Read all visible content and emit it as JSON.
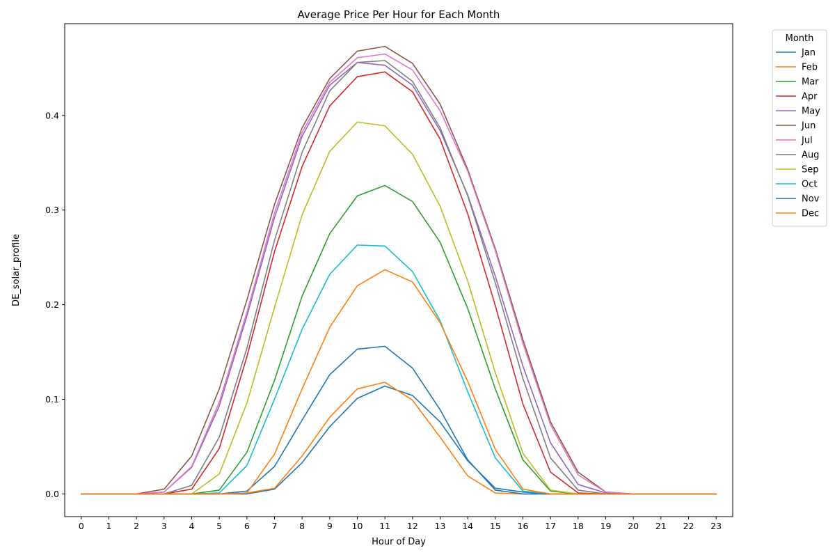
{
  "chart_data": {
    "type": "line",
    "title": "Average Price Per Hour for Each Month",
    "xlabel": "Hour of Day",
    "ylabel": "DE_solar_profile",
    "x": [
      0,
      1,
      2,
      3,
      4,
      5,
      6,
      7,
      8,
      9,
      10,
      11,
      12,
      13,
      14,
      15,
      16,
      17,
      18,
      19,
      20,
      21,
      22,
      23
    ],
    "x_tick_labels": [
      "0",
      "1",
      "2",
      "3",
      "4",
      "5",
      "6",
      "7",
      "8",
      "9",
      "10",
      "11",
      "12",
      "13",
      "14",
      "15",
      "16",
      "17",
      "18",
      "19",
      "20",
      "21",
      "22",
      "23"
    ],
    "xlim": [
      -0.6,
      23.6
    ],
    "ylim": [
      -0.024,
      0.497
    ],
    "y_ticks": [
      0.0,
      0.1,
      0.2,
      0.3,
      0.4
    ],
    "y_tick_labels": [
      "0.0",
      "0.1",
      "0.2",
      "0.3",
      "0.4"
    ],
    "grid": false,
    "legend": {
      "title": "Month",
      "placement": "outside-top-right"
    },
    "series": [
      {
        "name": "Jan",
        "color": "#1f77b4",
        "values": [
          0,
          0,
          0,
          0,
          0,
          0,
          0,
          0.005,
          0.033,
          0.071,
          0.101,
          0.114,
          0.104,
          0.076,
          0.035,
          0.006,
          0.002,
          0,
          0,
          0,
          0,
          0,
          0,
          0
        ]
      },
      {
        "name": "Feb",
        "color": "#ff7f0e",
        "values": [
          0,
          0,
          0,
          0,
          0,
          0,
          0.001,
          0.006,
          0.04,
          0.081,
          0.111,
          0.118,
          0.099,
          0.06,
          0.019,
          0.001,
          0,
          0,
          0,
          0,
          0,
          0,
          0,
          0
        ]
      },
      {
        "name": "Mar",
        "color": "#2ca02c",
        "values": [
          0,
          0,
          0,
          0,
          0,
          0.004,
          0.044,
          0.12,
          0.209,
          0.275,
          0.315,
          0.326,
          0.309,
          0.266,
          0.196,
          0.111,
          0.036,
          0.003,
          0,
          0,
          0,
          0,
          0,
          0
        ]
      },
      {
        "name": "Apr",
        "color": "#d62728",
        "values": [
          0,
          0,
          0,
          0,
          0.005,
          0.048,
          0.145,
          0.256,
          0.346,
          0.41,
          0.441,
          0.446,
          0.425,
          0.375,
          0.296,
          0.199,
          0.095,
          0.023,
          0.001,
          0,
          0,
          0,
          0,
          0
        ]
      },
      {
        "name": "May",
        "color": "#9467bd",
        "values": [
          0,
          0,
          0,
          0.002,
          0.028,
          0.093,
          0.188,
          0.292,
          0.378,
          0.432,
          0.456,
          0.453,
          0.432,
          0.384,
          0.316,
          0.23,
          0.135,
          0.054,
          0.01,
          0.001,
          0,
          0,
          0,
          0
        ]
      },
      {
        "name": "Jun",
        "color": "#8c564b",
        "values": [
          0,
          0,
          0,
          0.005,
          0.04,
          0.111,
          0.205,
          0.306,
          0.387,
          0.439,
          0.468,
          0.473,
          0.455,
          0.412,
          0.343,
          0.259,
          0.163,
          0.076,
          0.023,
          0.002,
          0,
          0,
          0,
          0
        ]
      },
      {
        "name": "Jul",
        "color": "#e377c2",
        "values": [
          0,
          0,
          0,
          0.002,
          0.029,
          0.097,
          0.192,
          0.297,
          0.382,
          0.435,
          0.461,
          0.465,
          0.448,
          0.405,
          0.341,
          0.257,
          0.159,
          0.073,
          0.02,
          0.002,
          0,
          0,
          0,
          0
        ]
      },
      {
        "name": "Aug",
        "color": "#7f7f7f",
        "values": [
          0,
          0,
          0,
          0,
          0.009,
          0.06,
          0.154,
          0.268,
          0.361,
          0.426,
          0.456,
          0.458,
          0.436,
          0.387,
          0.315,
          0.223,
          0.122,
          0.038,
          0.004,
          0,
          0,
          0,
          0,
          0
        ]
      },
      {
        "name": "Sep",
        "color": "#bcbd22",
        "values": [
          0,
          0,
          0,
          0,
          0,
          0.021,
          0.096,
          0.197,
          0.295,
          0.362,
          0.393,
          0.389,
          0.359,
          0.304,
          0.225,
          0.128,
          0.043,
          0.004,
          0,
          0,
          0,
          0,
          0,
          0
        ]
      },
      {
        "name": "Oct",
        "color": "#17becf",
        "values": [
          0,
          0,
          0,
          0,
          0,
          0.001,
          0.03,
          0.1,
          0.174,
          0.232,
          0.263,
          0.262,
          0.235,
          0.183,
          0.108,
          0.038,
          0.003,
          0,
          0,
          0,
          0,
          0,
          0,
          0
        ]
      },
      {
        "name": "Nov",
        "color": "#1f77b4",
        "values": [
          0,
          0,
          0,
          0,
          0,
          0,
          0.003,
          0.029,
          0.078,
          0.126,
          0.153,
          0.156,
          0.133,
          0.089,
          0.036,
          0.004,
          0,
          0,
          0,
          0,
          0,
          0,
          0,
          0
        ]
      },
      {
        "name": "Dec",
        "color": "#ff7f0e",
        "values": [
          0,
          0,
          0,
          0,
          0,
          0,
          0.001,
          0.042,
          0.111,
          0.176,
          0.22,
          0.237,
          0.224,
          0.181,
          0.119,
          0.047,
          0.005,
          0,
          0,
          0,
          0,
          0,
          0,
          0
        ]
      }
    ]
  }
}
